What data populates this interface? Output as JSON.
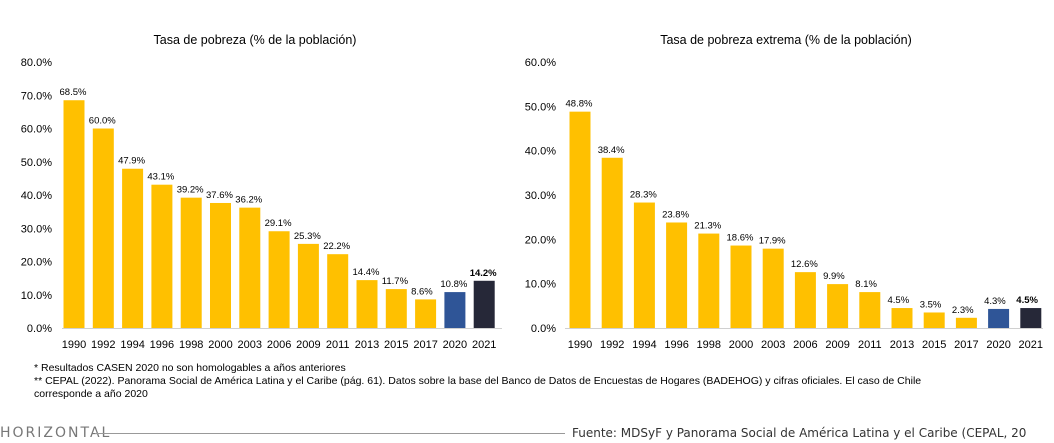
{
  "chart_data": [
    {
      "type": "bar",
      "title": "Tasa de pobreza (% de la población)",
      "categories": [
        "1990",
        "1992",
        "1994",
        "1996",
        "1998",
        "2000",
        "2003",
        "2006",
        "2009",
        "2011",
        "2013",
        "2015",
        "2017",
        "2020",
        "2021"
      ],
      "values": [
        68.5,
        60.0,
        47.9,
        43.1,
        39.2,
        37.6,
        36.2,
        29.1,
        25.3,
        22.2,
        14.4,
        11.7,
        8.6,
        10.8,
        14.2
      ],
      "labels": [
        "68.5%",
        "60.0%",
        "47.9%",
        "43.1%",
        "39.2%",
        "37.6%",
        "36.2%",
        "29.1%",
        "25.3%",
        "22.2%",
        "14.4%",
        "11.7%",
        "8.6%",
        "10.8%",
        "14.2%"
      ],
      "yticks": [
        "0.0%",
        "10.0%",
        "20.0%",
        "30.0%",
        "40.0%",
        "50.0%",
        "60.0%",
        "70.0%",
        "80.0%"
      ],
      "ylim": [
        0,
        80
      ],
      "bar_colors": {
        "default": "#FFC000",
        "2020": "#2F5597",
        "2021": "#262838"
      },
      "bold_label_index": 14,
      "grid": false
    },
    {
      "type": "bar",
      "title": "Tasa de pobreza extrema (% de la población)",
      "categories": [
        "1990",
        "1992",
        "1994",
        "1996",
        "1998",
        "2000",
        "2003",
        "2006",
        "2009",
        "2011",
        "2013",
        "2015",
        "2017",
        "2020",
        "2021"
      ],
      "values": [
        48.8,
        38.4,
        28.3,
        23.8,
        21.3,
        18.6,
        17.9,
        12.6,
        9.9,
        8.1,
        4.5,
        3.5,
        2.3,
        4.3,
        4.5
      ],
      "labels": [
        "48.8%",
        "38.4%",
        "28.3%",
        "23.8%",
        "21.3%",
        "18.6%",
        "17.9%",
        "12.6%",
        "9.9%",
        "8.1%",
        "4.5%",
        "3.5%",
        "2.3%",
        "4.3%",
        "4.5%"
      ],
      "yticks": [
        "0.0%",
        "10.0%",
        "20.0%",
        "30.0%",
        "40.0%",
        "50.0%",
        "60.0%"
      ],
      "ylim": [
        0,
        60
      ],
      "bar_colors": {
        "default": "#FFC000",
        "2020": "#2F5597",
        "2021": "#262838"
      },
      "bold_label_index": 14,
      "grid": false
    }
  ],
  "notes": {
    "note1": "* Resultados CASEN 2020 no son homologables a años anteriores",
    "note2": "** CEPAL (2022). Panorama Social de América Latina y el Caribe (pág. 61). Datos  sobre la base del Banco de Datos de Encuestas de Hogares (BADEHOG) y cifras oficiales. El caso de Chile",
    "note3": "corresponde a año 2020"
  },
  "footer": {
    "brand": "HORIZONTAL",
    "source": "Fuente: MDSyF y Panorama Social de América Latina y el Caribe (CEPAL, 20"
  }
}
